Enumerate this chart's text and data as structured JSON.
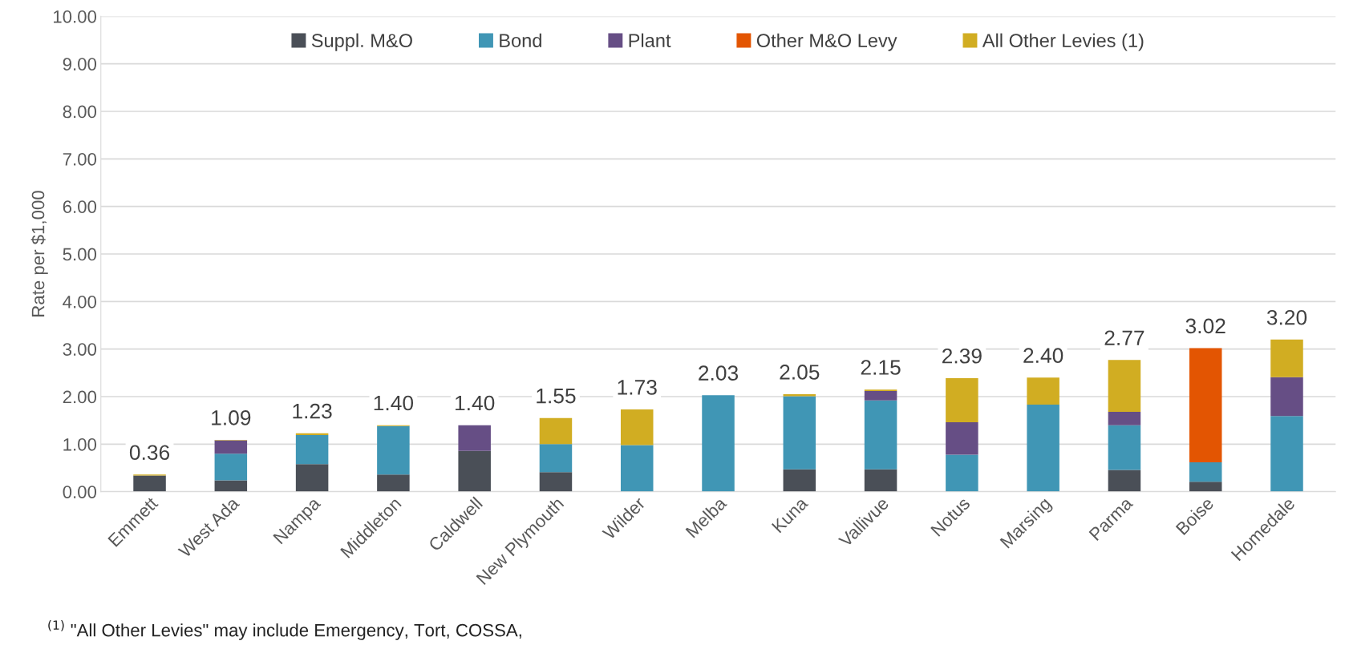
{
  "chart_data": {
    "type": "bar",
    "stacked": true,
    "ylabel": "Rate per $1,000",
    "categories": [
      "Emmett",
      "West Ada",
      "Nampa",
      "Middleton",
      "Caldwell",
      "New Plymouth",
      "Wilder",
      "Melba",
      "Kuna",
      "Vallivue",
      "Notus",
      "Marsing",
      "Parma",
      "Boise",
      "Homedale"
    ],
    "series": [
      {
        "name": "Suppl. M&O",
        "color": "#4a4f57",
        "values": [
          0.34,
          0.24,
          0.58,
          0.36,
          0.86,
          0.41,
          0,
          0,
          0.47,
          0.47,
          0,
          0,
          0.46,
          0.21,
          0
        ]
      },
      {
        "name": "Bond",
        "color": "#4096b5",
        "values": [
          0,
          0.56,
          0.61,
          1.02,
          0,
          0.59,
          0.98,
          2.03,
          1.54,
          1.45,
          0.78,
          1.83,
          0.94,
          0.41,
          1.59
        ]
      },
      {
        "name": "Plant",
        "color": "#664e85",
        "values": [
          0,
          0.28,
          0,
          0,
          0.54,
          0,
          0,
          0,
          0,
          0.2,
          0.68,
          0,
          0.28,
          0,
          0.82
        ]
      },
      {
        "name": "Other M&O Levy",
        "color": "#e35502",
        "values": [
          0,
          0,
          0,
          0,
          0,
          0,
          0,
          0,
          0,
          0,
          0,
          0,
          0,
          2.4,
          0
        ]
      },
      {
        "name": "All Other Levies (1)",
        "color": "#d1ad22",
        "values": [
          0.02,
          0.01,
          0.04,
          0.02,
          0,
          0.55,
          0.75,
          0,
          0.04,
          0.03,
          0.93,
          0.57,
          1.09,
          0,
          0.79
        ]
      }
    ],
    "totals": [
      "0.36",
      "1.09",
      "1.23",
      "1.40",
      "1.40",
      "1.55",
      "1.73",
      "2.03",
      "2.05",
      "2.15",
      "2.39",
      "2.40",
      "2.77",
      "3.02",
      "3.20"
    ],
    "ylim": [
      0,
      10
    ],
    "yticks": [
      {
        "value": 0,
        "label": "0.00"
      },
      {
        "value": 1,
        "label": "1.00"
      },
      {
        "value": 2,
        "label": "2.00"
      },
      {
        "value": 3,
        "label": "3.00"
      },
      {
        "value": 4,
        "label": "4.00"
      },
      {
        "value": 5,
        "label": "5.00"
      },
      {
        "value": 6,
        "label": "6.00"
      },
      {
        "value": 7,
        "label": "7.00"
      },
      {
        "value": 8,
        "label": "8.00"
      },
      {
        "value": 9,
        "label": "9.00"
      },
      {
        "value": 10,
        "label": "10.00"
      }
    ],
    "grid": "y",
    "legend": "top",
    "annotations": [
      "$^{(1)}$ \"All Other Levies\" may include Emergency, Tort, COSSA,"
    ]
  }
}
